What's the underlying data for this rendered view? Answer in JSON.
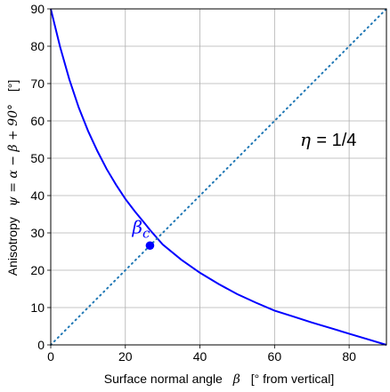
{
  "chart_data": {
    "type": "line",
    "title": "",
    "xlabel": {
      "prefix": "Surface normal angle",
      "symbol": "β",
      "suffix": "[° from vertical]"
    },
    "ylabel": {
      "prefix": "Anisotropy",
      "expression": "ψ = α − β + 90°",
      "suffix": "[°]"
    },
    "xlim": [
      0,
      90
    ],
    "ylim": [
      0,
      90
    ],
    "xticks": [
      0,
      20,
      40,
      60,
      80
    ],
    "yticks": [
      0,
      10,
      20,
      30,
      40,
      50,
      60,
      70,
      80,
      90
    ],
    "grid": true,
    "series": [
      {
        "style": "solid",
        "color": "#0000ff",
        "x": [
          0,
          2.5,
          5,
          7.5,
          10,
          12.5,
          15,
          17.5,
          20,
          22.5,
          25,
          26.6,
          30,
          35,
          40,
          45,
          50,
          55,
          60,
          65,
          70,
          75,
          80,
          85,
          90
        ],
        "y": [
          90,
          79.8,
          71.1,
          63.6,
          57.3,
          51.9,
          47.1,
          42.9,
          39.1,
          35.8,
          32.8,
          30.8,
          26.9,
          22.8,
          19.3,
          16.3,
          13.6,
          11.3,
          9.2,
          7.6,
          6.0,
          4.5,
          3.0,
          1.5,
          0
        ]
      },
      {
        "style": "dotted",
        "color": "#1f77b4",
        "x": [
          0,
          90
        ],
        "y": [
          0,
          90
        ]
      }
    ],
    "marker": {
      "label": "β",
      "subscript": "c",
      "x": 26.6,
      "y": 26.6,
      "color": "#0000ff"
    },
    "annotation": {
      "lhs": "η",
      "rhs": " = 1/4"
    }
  }
}
